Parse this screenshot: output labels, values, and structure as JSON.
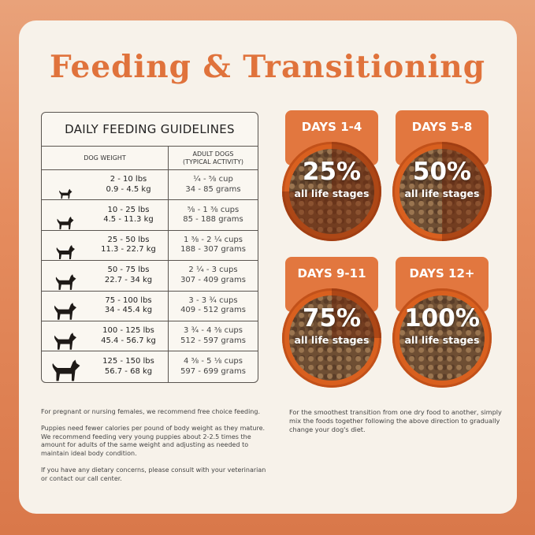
{
  "title": "Feeding & Transitioning",
  "table": {
    "title": "DAILY FEEDING GUIDELINES",
    "col1": "DOG WEIGHT",
    "col2": "ADULT DOGS",
    "col2_sub": "(TYPICAL ACTIVITY)",
    "rows": [
      {
        "lbs": "2 - 10 lbs",
        "kg": "0.9 - 4.5 kg",
        "cups": "¼ - ⅝ cup",
        "grams": "34 - 85 grams",
        "icon": "chihuahua-icon"
      },
      {
        "lbs": "10 - 25 lbs",
        "kg": "4.5 - 11.3 kg",
        "cups": "⅝ - 1 ⅜ cups",
        "grams": "85 - 188 grams",
        "icon": "french-bulldog-icon"
      },
      {
        "lbs": "25 - 50 lbs",
        "kg": "11.3 - 22.7 kg",
        "cups": "1 ⅜ - 2 ¼ cups",
        "grams": "188 - 307 grams",
        "icon": "husky-icon"
      },
      {
        "lbs": "50 - 75 lbs",
        "kg": "22.7 - 34 kg",
        "cups": "2 ¼ - 3 cups",
        "grams": "307 - 409 grams",
        "icon": "shepherd-icon"
      },
      {
        "lbs": "75 - 100 lbs",
        "kg": "34 - 45.4 kg",
        "cups": "3 - 3 ¾ cups",
        "grams": "409 - 512 grams",
        "icon": "doberman-icon"
      },
      {
        "lbs": "100 - 125 lbs",
        "kg": "45.4 - 56.7 kg",
        "cups": "3 ¾ - 4 ⅜ cups",
        "grams": "512 - 597 grams",
        "icon": "labrador-icon"
      },
      {
        "lbs": "125 - 150 lbs",
        "kg": "56.7 - 68 kg",
        "cups": "4 ⅜ - 5 ⅛ cups",
        "grams": "597 - 699 grams",
        "icon": "newfoundland-icon"
      }
    ]
  },
  "stages": [
    {
      "days": "DAYS 1-4",
      "percent": "25%",
      "label": "all life stages",
      "fraction": 0.25
    },
    {
      "days": "DAYS 5-8",
      "percent": "50%",
      "label": "all life stages",
      "fraction": 0.5
    },
    {
      "days": "DAYS 9-11",
      "percent": "75%",
      "label": "all life stages",
      "fraction": 0.75
    },
    {
      "days": "DAYS 12+",
      "percent": "100%",
      "label": "all life stages",
      "fraction": 1
    }
  ],
  "notes": [
    "For pregnant or nursing females, we recommend free choice feeding.",
    "Puppies need fewer calories per pound of body weight as they mature. We recommend feeding very young puppies about 2-2.5 times the amount for adults of the same weight and adjusting as needed to maintain ideal body condition.",
    "If you have any dietary concerns, please consult with your veterinarian or contact our call center."
  ],
  "transition_note": "For the smoothest transition from one dry food to another, simply mix the foods together following the above direction to gradually change your dog's diet.",
  "colors": {
    "accent": "#e0733c",
    "bowl": "#d9601f",
    "card": "#f7f2ea"
  }
}
